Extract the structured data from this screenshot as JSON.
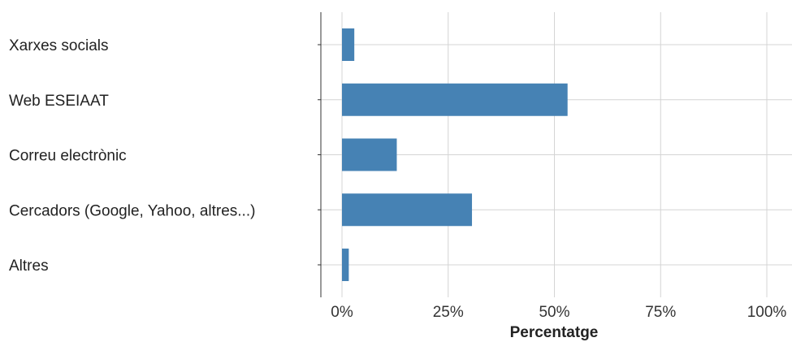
{
  "chart_data": {
    "type": "bar",
    "orientation": "horizontal",
    "categories": [
      "Xarxes socials",
      "Web ESEIAAT",
      "Correu electrònic",
      "Cercadors (Google, Yahoo, altres...)",
      "Altres"
    ],
    "values": [
      2.9,
      53.1,
      12.9,
      30.6,
      1.6
    ],
    "xlabel": "Percentatge",
    "ylabel": "",
    "xlim": [
      0,
      100
    ],
    "x_ticks": [
      0,
      25,
      50,
      75,
      100
    ],
    "x_tick_labels": [
      "0%",
      "25%",
      "50%",
      "75%",
      "100%"
    ],
    "grid": true,
    "bar_color": "#4682b4"
  }
}
